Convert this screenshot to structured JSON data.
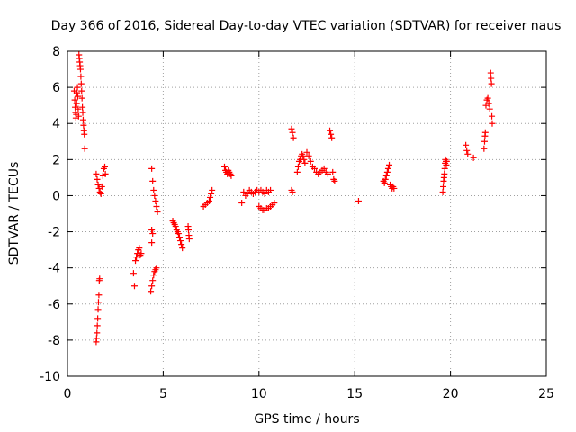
{
  "chart_data": {
    "type": "scatter",
    "title": "Day 366 of 2016, Sidereal Day-to-day VTEC variation (SDTVAR) for receiver naus",
    "xlabel": "GPS time / hours",
    "ylabel": "SDTVAR / TECUs",
    "xlim": [
      0,
      25
    ],
    "ylim": [
      -10,
      8
    ],
    "xticks": [
      0,
      5,
      10,
      15,
      20,
      25
    ],
    "yticks": [
      -10,
      -8,
      -6,
      -4,
      -2,
      0,
      2,
      4,
      6,
      8
    ],
    "grid": true,
    "marker": "+",
    "color": "#ff0000",
    "series": [
      {
        "name": "SDTVAR",
        "points": [
          [
            0.35,
            5.8
          ],
          [
            0.38,
            5.3
          ],
          [
            0.4,
            4.9
          ],
          [
            0.42,
            4.6
          ],
          [
            0.44,
            4.3
          ],
          [
            0.46,
            4.5
          ],
          [
            0.48,
            5.1
          ],
          [
            0.5,
            5.7
          ],
          [
            0.52,
            6.0
          ],
          [
            0.54,
            5.5
          ],
          [
            0.56,
            4.8
          ],
          [
            0.58,
            4.4
          ],
          [
            0.6,
            7.8
          ],
          [
            0.62,
            7.6
          ],
          [
            0.64,
            7.4
          ],
          [
            0.66,
            7.2
          ],
          [
            0.68,
            7.0
          ],
          [
            0.7,
            6.6
          ],
          [
            0.72,
            6.2
          ],
          [
            0.74,
            5.8
          ],
          [
            0.76,
            5.4
          ],
          [
            0.78,
            4.9
          ],
          [
            0.8,
            4.6
          ],
          [
            0.82,
            4.2
          ],
          [
            0.84,
            3.9
          ],
          [
            0.86,
            3.6
          ],
          [
            0.88,
            3.4
          ],
          [
            0.9,
            2.6
          ],
          [
            1.5,
            -8.1
          ],
          [
            1.52,
            -7.9
          ],
          [
            1.54,
            -7.6
          ],
          [
            1.56,
            -7.2
          ],
          [
            1.58,
            -6.8
          ],
          [
            1.6,
            -6.3
          ],
          [
            1.62,
            -5.9
          ],
          [
            1.64,
            -5.5
          ],
          [
            1.66,
            -4.7
          ],
          [
            1.68,
            -4.6
          ],
          [
            1.5,
            1.2
          ],
          [
            1.55,
            0.9
          ],
          [
            1.6,
            0.6
          ],
          [
            1.65,
            0.4
          ],
          [
            1.7,
            0.2
          ],
          [
            1.75,
            0.1
          ],
          [
            1.8,
            0.5
          ],
          [
            1.85,
            1.1
          ],
          [
            1.9,
            1.5
          ],
          [
            1.95,
            1.6
          ],
          [
            1.98,
            1.2
          ],
          [
            3.45,
            -4.3
          ],
          [
            3.5,
            -5.0
          ],
          [
            3.55,
            -3.6
          ],
          [
            3.6,
            -3.4
          ],
          [
            3.65,
            -3.2
          ],
          [
            3.7,
            -3.0
          ],
          [
            3.75,
            -2.9
          ],
          [
            3.8,
            -3.3
          ],
          [
            3.85,
            -3.2
          ],
          [
            4.35,
            -5.3
          ],
          [
            4.4,
            -5.0
          ],
          [
            4.45,
            -4.7
          ],
          [
            4.5,
            -4.4
          ],
          [
            4.55,
            -4.2
          ],
          [
            4.6,
            -4.1
          ],
          [
            4.65,
            -4.0
          ],
          [
            4.4,
            -2.6
          ],
          [
            4.45,
            -2.1
          ],
          [
            4.4,
            -1.9
          ],
          [
            4.4,
            1.5
          ],
          [
            4.45,
            0.8
          ],
          [
            4.5,
            0.3
          ],
          [
            4.55,
            0.0
          ],
          [
            4.6,
            -0.3
          ],
          [
            4.65,
            -0.6
          ],
          [
            4.7,
            -0.9
          ],
          [
            5.5,
            -1.4
          ],
          [
            5.55,
            -1.5
          ],
          [
            5.6,
            -1.6
          ],
          [
            5.65,
            -1.7
          ],
          [
            5.7,
            -1.9
          ],
          [
            5.75,
            -2.0
          ],
          [
            5.8,
            -2.1
          ],
          [
            5.85,
            -2.3
          ],
          [
            5.9,
            -2.5
          ],
          [
            5.95,
            -2.7
          ],
          [
            6.0,
            -2.9
          ],
          [
            6.3,
            -1.7
          ],
          [
            6.32,
            -1.9
          ],
          [
            6.34,
            -2.2
          ],
          [
            6.36,
            -2.4
          ],
          [
            7.1,
            -0.6
          ],
          [
            7.2,
            -0.5
          ],
          [
            7.3,
            -0.4
          ],
          [
            7.4,
            -0.3
          ],
          [
            7.45,
            -0.1
          ],
          [
            7.5,
            0.1
          ],
          [
            7.55,
            0.3
          ],
          [
            8.2,
            1.6
          ],
          [
            8.25,
            1.4
          ],
          [
            8.3,
            1.3
          ],
          [
            8.35,
            1.2
          ],
          [
            8.4,
            1.4
          ],
          [
            8.45,
            1.3
          ],
          [
            8.5,
            1.2
          ],
          [
            8.55,
            1.1
          ],
          [
            9.1,
            -0.4
          ],
          [
            9.2,
            0.2
          ],
          [
            9.3,
            0.0
          ],
          [
            9.4,
            0.1
          ],
          [
            9.5,
            0.3
          ],
          [
            9.6,
            0.2
          ],
          [
            9.7,
            0.1
          ],
          [
            9.8,
            0.2
          ],
          [
            9.9,
            0.3
          ],
          [
            10.0,
            0.2
          ],
          [
            10.1,
            0.3
          ],
          [
            10.2,
            0.2
          ],
          [
            10.3,
            0.1
          ],
          [
            10.4,
            0.3
          ],
          [
            10.5,
            0.2
          ],
          [
            10.6,
            0.3
          ],
          [
            10.0,
            -0.6
          ],
          [
            10.1,
            -0.7
          ],
          [
            10.2,
            -0.8
          ],
          [
            10.3,
            -0.8
          ],
          [
            10.4,
            -0.7
          ],
          [
            10.5,
            -0.7
          ],
          [
            10.6,
            -0.6
          ],
          [
            10.7,
            -0.5
          ],
          [
            10.8,
            -0.4
          ],
          [
            11.7,
            3.7
          ],
          [
            11.75,
            3.5
          ],
          [
            11.8,
            3.2
          ],
          [
            11.7,
            0.3
          ],
          [
            11.75,
            0.2
          ],
          [
            12.0,
            1.3
          ],
          [
            12.05,
            1.6
          ],
          [
            12.1,
            1.9
          ],
          [
            12.15,
            2.0
          ],
          [
            12.2,
            2.2
          ],
          [
            12.25,
            2.3
          ],
          [
            12.3,
            2.2
          ],
          [
            12.35,
            2.0
          ],
          [
            12.4,
            1.8
          ],
          [
            12.5,
            2.4
          ],
          [
            12.6,
            2.2
          ],
          [
            12.7,
            1.9
          ],
          [
            12.8,
            1.6
          ],
          [
            12.9,
            1.5
          ],
          [
            13.0,
            1.3
          ],
          [
            13.1,
            1.2
          ],
          [
            13.2,
            1.3
          ],
          [
            13.3,
            1.4
          ],
          [
            13.4,
            1.5
          ],
          [
            13.5,
            1.3
          ],
          [
            13.6,
            1.2
          ],
          [
            13.7,
            3.6
          ],
          [
            13.75,
            3.4
          ],
          [
            13.8,
            3.2
          ],
          [
            13.85,
            1.3
          ],
          [
            13.9,
            0.9
          ],
          [
            13.95,
            0.8
          ],
          [
            15.2,
            -0.3
          ],
          [
            16.5,
            0.8
          ],
          [
            16.55,
            0.7
          ],
          [
            16.6,
            0.9
          ],
          [
            16.65,
            1.1
          ],
          [
            16.7,
            1.3
          ],
          [
            16.75,
            1.5
          ],
          [
            16.8,
            1.7
          ],
          [
            16.85,
            0.6
          ],
          [
            16.9,
            0.5
          ],
          [
            16.95,
            0.4
          ],
          [
            17.0,
            0.5
          ],
          [
            17.05,
            0.4
          ],
          [
            19.6,
            0.2
          ],
          [
            19.62,
            0.5
          ],
          [
            19.64,
            0.8
          ],
          [
            19.66,
            1.0
          ],
          [
            19.68,
            1.2
          ],
          [
            19.7,
            1.5
          ],
          [
            19.72,
            1.8
          ],
          [
            19.74,
            2.0
          ],
          [
            19.76,
            1.9
          ],
          [
            19.78,
            1.7
          ],
          [
            19.8,
            1.9
          ],
          [
            20.8,
            2.8
          ],
          [
            20.85,
            2.5
          ],
          [
            20.9,
            2.3
          ],
          [
            21.2,
            2.1
          ],
          [
            21.75,
            2.6
          ],
          [
            21.78,
            3.0
          ],
          [
            21.8,
            3.3
          ],
          [
            21.82,
            3.5
          ],
          [
            21.85,
            5.0
          ],
          [
            21.9,
            5.3
          ],
          [
            21.95,
            5.4
          ],
          [
            22.0,
            5.1
          ],
          [
            22.05,
            4.8
          ],
          [
            22.1,
            6.8
          ],
          [
            22.12,
            6.5
          ],
          [
            22.14,
            6.2
          ],
          [
            22.16,
            4.4
          ],
          [
            22.18,
            4.0
          ]
        ]
      }
    ]
  }
}
